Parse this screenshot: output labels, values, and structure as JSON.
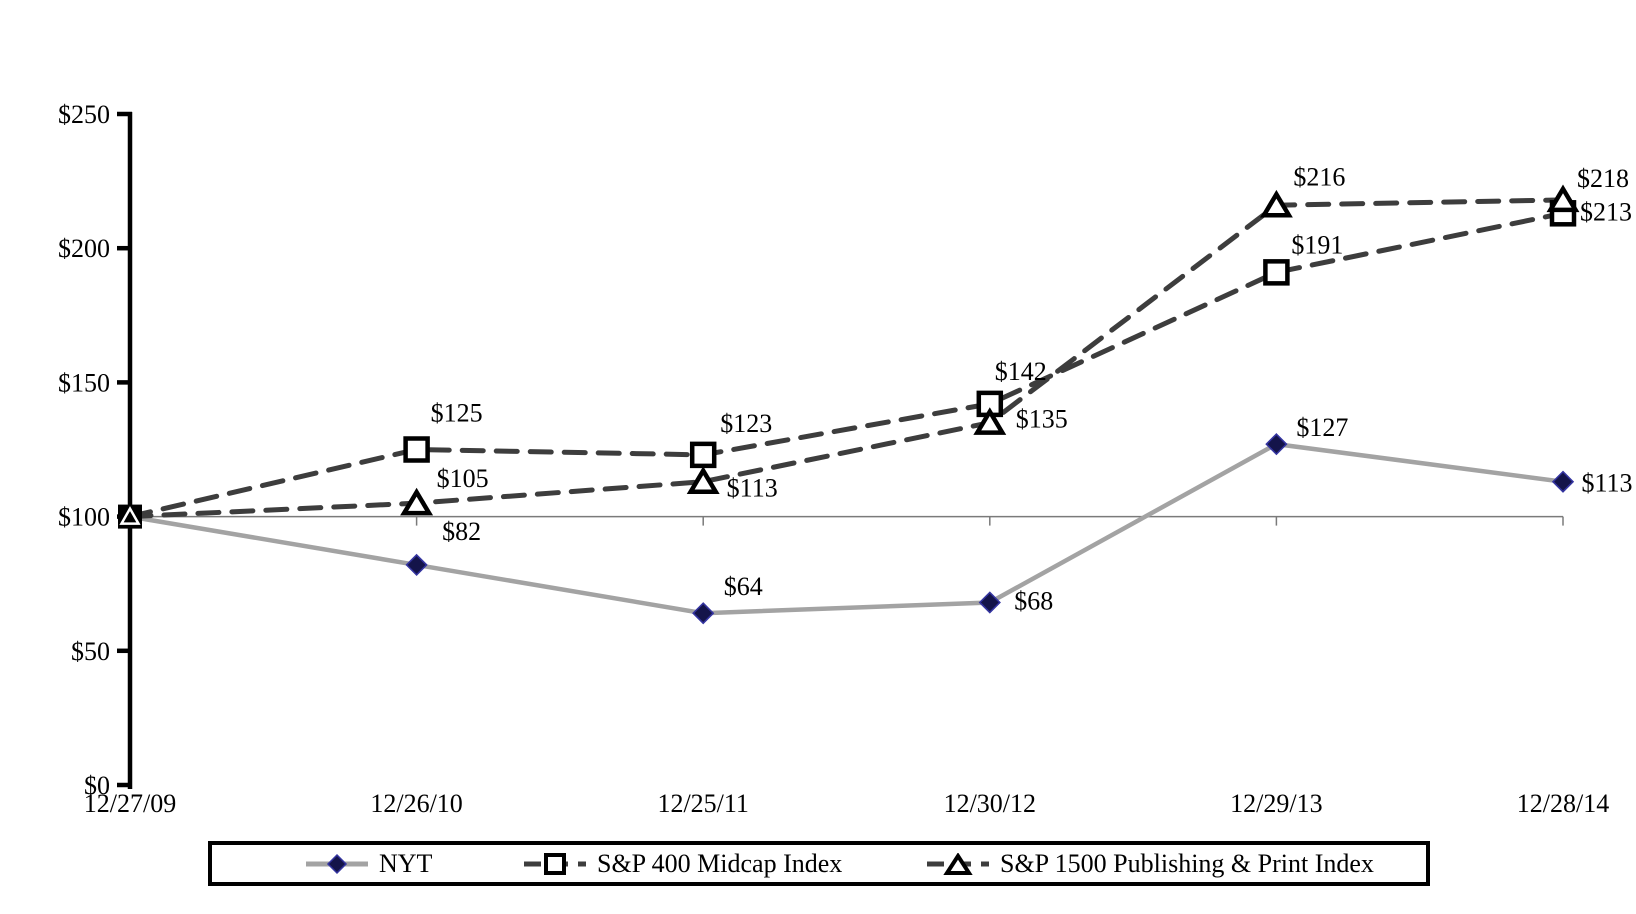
{
  "chart_data": {
    "type": "line",
    "title": "",
    "categories": [
      "12/27/09",
      "12/26/10",
      "12/25/11",
      "12/30/12",
      "12/29/13",
      "12/28/14"
    ],
    "y_axis": {
      "tick_labels": [
        "$0",
        "$50",
        "$100",
        "$150",
        "$200",
        "$250"
      ],
      "tick_values": [
        0,
        50,
        100,
        150,
        200,
        250
      ],
      "range": [
        0,
        250
      ],
      "category_axis_crosses_at": 100
    },
    "grid": "off",
    "legend": {
      "position": "bottom",
      "border": true
    },
    "series": [
      {
        "name": "NYT",
        "line_style": "solid",
        "line_color": "#A3A3A3",
        "marker": "diamond",
        "marker_color": "#14144A",
        "values": [
          100,
          82,
          64,
          68,
          127,
          113
        ],
        "point_labels": [
          "",
          "$82",
          "$64",
          "$68",
          "$127",
          "$113"
        ]
      },
      {
        "name": "S&P 400 Midcap Index",
        "line_style": "dashed",
        "line_color": "#3D3D3D",
        "marker": "square-open",
        "marker_color": "#000000",
        "values": [
          100,
          125,
          123,
          142,
          191,
          213
        ],
        "point_labels": [
          "",
          "$125",
          "$123",
          "$142",
          "$191",
          "$213"
        ]
      },
      {
        "name": "S&P 1500 Publishing & Print Index",
        "line_style": "dashed",
        "line_color": "#3D3D3D",
        "marker": "triangle-open",
        "marker_color": "#000000",
        "values": [
          100,
          105,
          113,
          135,
          216,
          218
        ],
        "point_labels": [
          "",
          "$105",
          "$113",
          "$135",
          "$216",
          "$218"
        ]
      }
    ],
    "label_offsets": [
      [
        [
          0,
          0
        ],
        [
          45,
          -25
        ],
        [
          40,
          -18
        ],
        [
          44,
          7
        ],
        [
          46,
          -8
        ],
        [
          44,
          10
        ]
      ],
      [
        [
          0,
          0
        ],
        [
          40,
          -28
        ],
        [
          43,
          -23
        ],
        [
          31,
          -24
        ],
        [
          41,
          -19
        ],
        [
          43,
          7
        ]
      ],
      [
        [
          0,
          0
        ],
        [
          46,
          -16
        ],
        [
          49,
          15
        ],
        [
          52,
          5
        ],
        [
          43,
          -20
        ],
        [
          40,
          -13
        ]
      ]
    ]
  }
}
